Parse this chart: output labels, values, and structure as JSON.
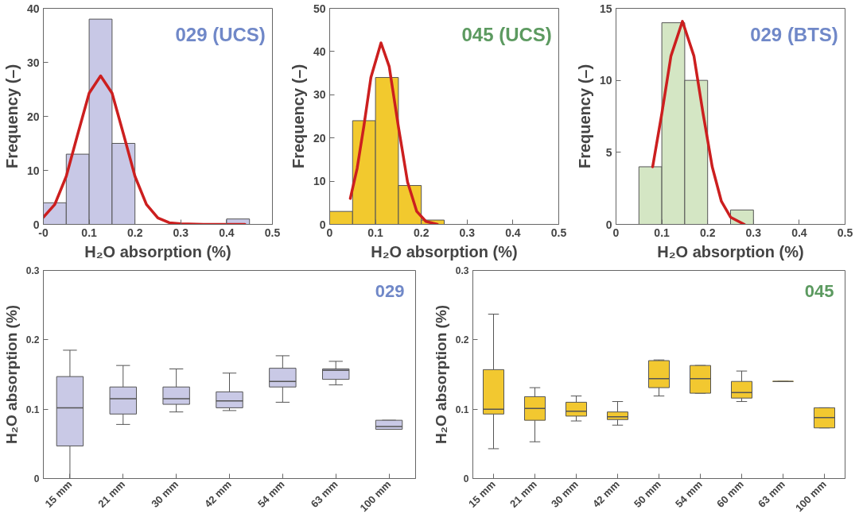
{
  "chart_data": [
    {
      "type": "histogram",
      "xlabel": "H₂O absorption (%)",
      "ylabel": "Frequency (–)",
      "annotations": [
        "029 (UCS)"
      ],
      "bins": [
        0,
        0.05,
        0.1,
        0.15,
        0.2,
        0.25,
        0.3,
        0.35,
        0.4,
        0.45
      ],
      "values": [
        4,
        13,
        38,
        15,
        0,
        0,
        0,
        0,
        1
      ],
      "color": "#c8c8e6",
      "xlim": [
        0,
        0.5
      ],
      "xticks": [
        {
          "value": 0,
          "label": "-0"
        },
        0.1,
        0.2,
        0.3,
        0.4,
        0.5
      ],
      "ylim": [
        0,
        40
      ],
      "yticks": [
        0,
        10,
        20,
        30,
        40
      ],
      "grid": false,
      "series": [
        {
          "type": "line",
          "color": "#cc1f1f",
          "x": [
            0,
            0.025,
            0.05,
            0.075,
            0.1,
            0.125,
            0.15,
            0.175,
            0.2,
            0.225,
            0.25,
            0.275,
            0.3,
            0.35,
            0.44
          ],
          "values": [
            1.3,
            3.7,
            8.9,
            16.7,
            24.3,
            27.5,
            24.3,
            16.7,
            8.9,
            3.7,
            1.2,
            0.3,
            0.1,
            0,
            0
          ]
        }
      ]
    },
    {
      "type": "histogram",
      "xlabel": "H₂O absorption (%)",
      "ylabel": "Frequency (–)",
      "annotations": [
        "045 (UCS)"
      ],
      "bins": [
        0,
        0.05,
        0.1,
        0.15,
        0.2,
        0.25
      ],
      "values": [
        3,
        24,
        34,
        9,
        1
      ],
      "color": "#f2c92e",
      "xlim": [
        0,
        0.5
      ],
      "xticks": [
        0,
        0.1,
        0.2,
        0.3,
        0.4,
        0.5
      ],
      "ylim": [
        0,
        50
      ],
      "yticks": [
        0,
        10,
        20,
        30,
        40,
        50
      ],
      "grid": false,
      "series": [
        {
          "type": "line",
          "color": "#cc1f1f",
          "x": [
            0.045,
            0.06,
            0.075,
            0.09,
            0.112,
            0.13,
            0.15,
            0.17,
            0.19,
            0.21,
            0.235
          ],
          "values": [
            6,
            13,
            23,
            34,
            42,
            36.5,
            22.6,
            9.8,
            3,
            0.7,
            0
          ]
        }
      ]
    },
    {
      "type": "histogram",
      "xlabel": "H₂O absorption (%)",
      "ylabel": "Frequency (–)",
      "annotations": [
        "029 (BTS)"
      ],
      "bins": [
        0.05,
        0.1,
        0.15,
        0.2,
        0.25,
        0.3
      ],
      "values": [
        4,
        14,
        10,
        0,
        1
      ],
      "color": "#d4e6c4",
      "xlim": [
        0,
        0.5
      ],
      "xticks": [
        0,
        0.1,
        0.2,
        0.3,
        0.4,
        0.5
      ],
      "ylim": [
        0,
        15
      ],
      "yticks": [
        0,
        5,
        10,
        15
      ],
      "grid": false,
      "series": [
        {
          "type": "line",
          "color": "#cc1f1f",
          "x": [
            0.08,
            0.1,
            0.12,
            0.145,
            0.17,
            0.19,
            0.21,
            0.23,
            0.25,
            0.28
          ],
          "values": [
            4,
            7.7,
            11.7,
            14.1,
            11.7,
            7.7,
            4,
            1.6,
            0.5,
            0
          ]
        }
      ]
    },
    {
      "type": "box",
      "ylabel": "H₂O absorption (%)",
      "annotations": [
        "029"
      ],
      "categories": [
        "15 mm",
        "21 mm",
        "30 mm",
        "42 mm",
        "54 mm",
        "63 mm",
        "100 mm"
      ],
      "color": "#c9c9e6",
      "ylim": [
        0,
        0.3
      ],
      "yticks": [
        0,
        0.1,
        0.2,
        0.3
      ],
      "grid": false,
      "boxes": [
        {
          "low": 0,
          "q1": 0.047,
          "median": 0.102,
          "q3": 0.147,
          "high": 0.185
        },
        {
          "low": 0.078,
          "q1": 0.093,
          "median": 0.115,
          "q3": 0.132,
          "high": 0.163
        },
        {
          "low": 0.096,
          "q1": 0.107,
          "median": 0.115,
          "q3": 0.132,
          "high": 0.158
        },
        {
          "low": 0.098,
          "q1": 0.102,
          "median": 0.112,
          "q3": 0.125,
          "high": 0.152
        },
        {
          "low": 0.11,
          "q1": 0.132,
          "median": 0.14,
          "q3": 0.159,
          "high": 0.177
        },
        {
          "low": 0.135,
          "q1": 0.143,
          "median": 0.156,
          "q3": 0.158,
          "high": 0.169
        },
        {
          "low": 0.071,
          "q1": 0.071,
          "median": 0.075,
          "q3": 0.084,
          "high": 0.084
        }
      ]
    },
    {
      "type": "box",
      "ylabel": "H₂O absorption (%)",
      "annotations": [
        "045"
      ],
      "categories": [
        "15 mm",
        "21 mm",
        "30 mm",
        "42 mm",
        "50 mm",
        "54 mm",
        "60 mm",
        "63 mm",
        "100 mm"
      ],
      "color": "#f2c830",
      "ylim": [
        0,
        0.3
      ],
      "yticks": [
        0,
        0.1,
        0.2,
        0.3
      ],
      "grid": false,
      "boxes": [
        {
          "low": 0.043,
          "q1": 0.093,
          "median": 0.1,
          "q3": 0.157,
          "high": 0.237
        },
        {
          "low": 0.053,
          "q1": 0.084,
          "median": 0.101,
          "q3": 0.118,
          "high": 0.131
        },
        {
          "low": 0.083,
          "q1": 0.09,
          "median": 0.097,
          "q3": 0.11,
          "high": 0.119
        },
        {
          "low": 0.077,
          "q1": 0.085,
          "median": 0.089,
          "q3": 0.096,
          "high": 0.111
        },
        {
          "low": 0.119,
          "q1": 0.131,
          "median": 0.144,
          "q3": 0.17,
          "high": 0.171
        },
        {
          "low": 0.123,
          "q1": 0.123,
          "median": 0.144,
          "q3": 0.163,
          "high": 0.163
        },
        {
          "low": 0.111,
          "q1": 0.116,
          "median": 0.124,
          "q3": 0.14,
          "high": 0.155
        },
        {
          "low": 0.14,
          "q1": 0.14,
          "median": 0.14,
          "q3": 0.14,
          "high": 0.14
        },
        {
          "low": 0.073,
          "q1": 0.073,
          "median": 0.088,
          "q3": 0.102,
          "high": 0.102
        }
      ]
    }
  ]
}
